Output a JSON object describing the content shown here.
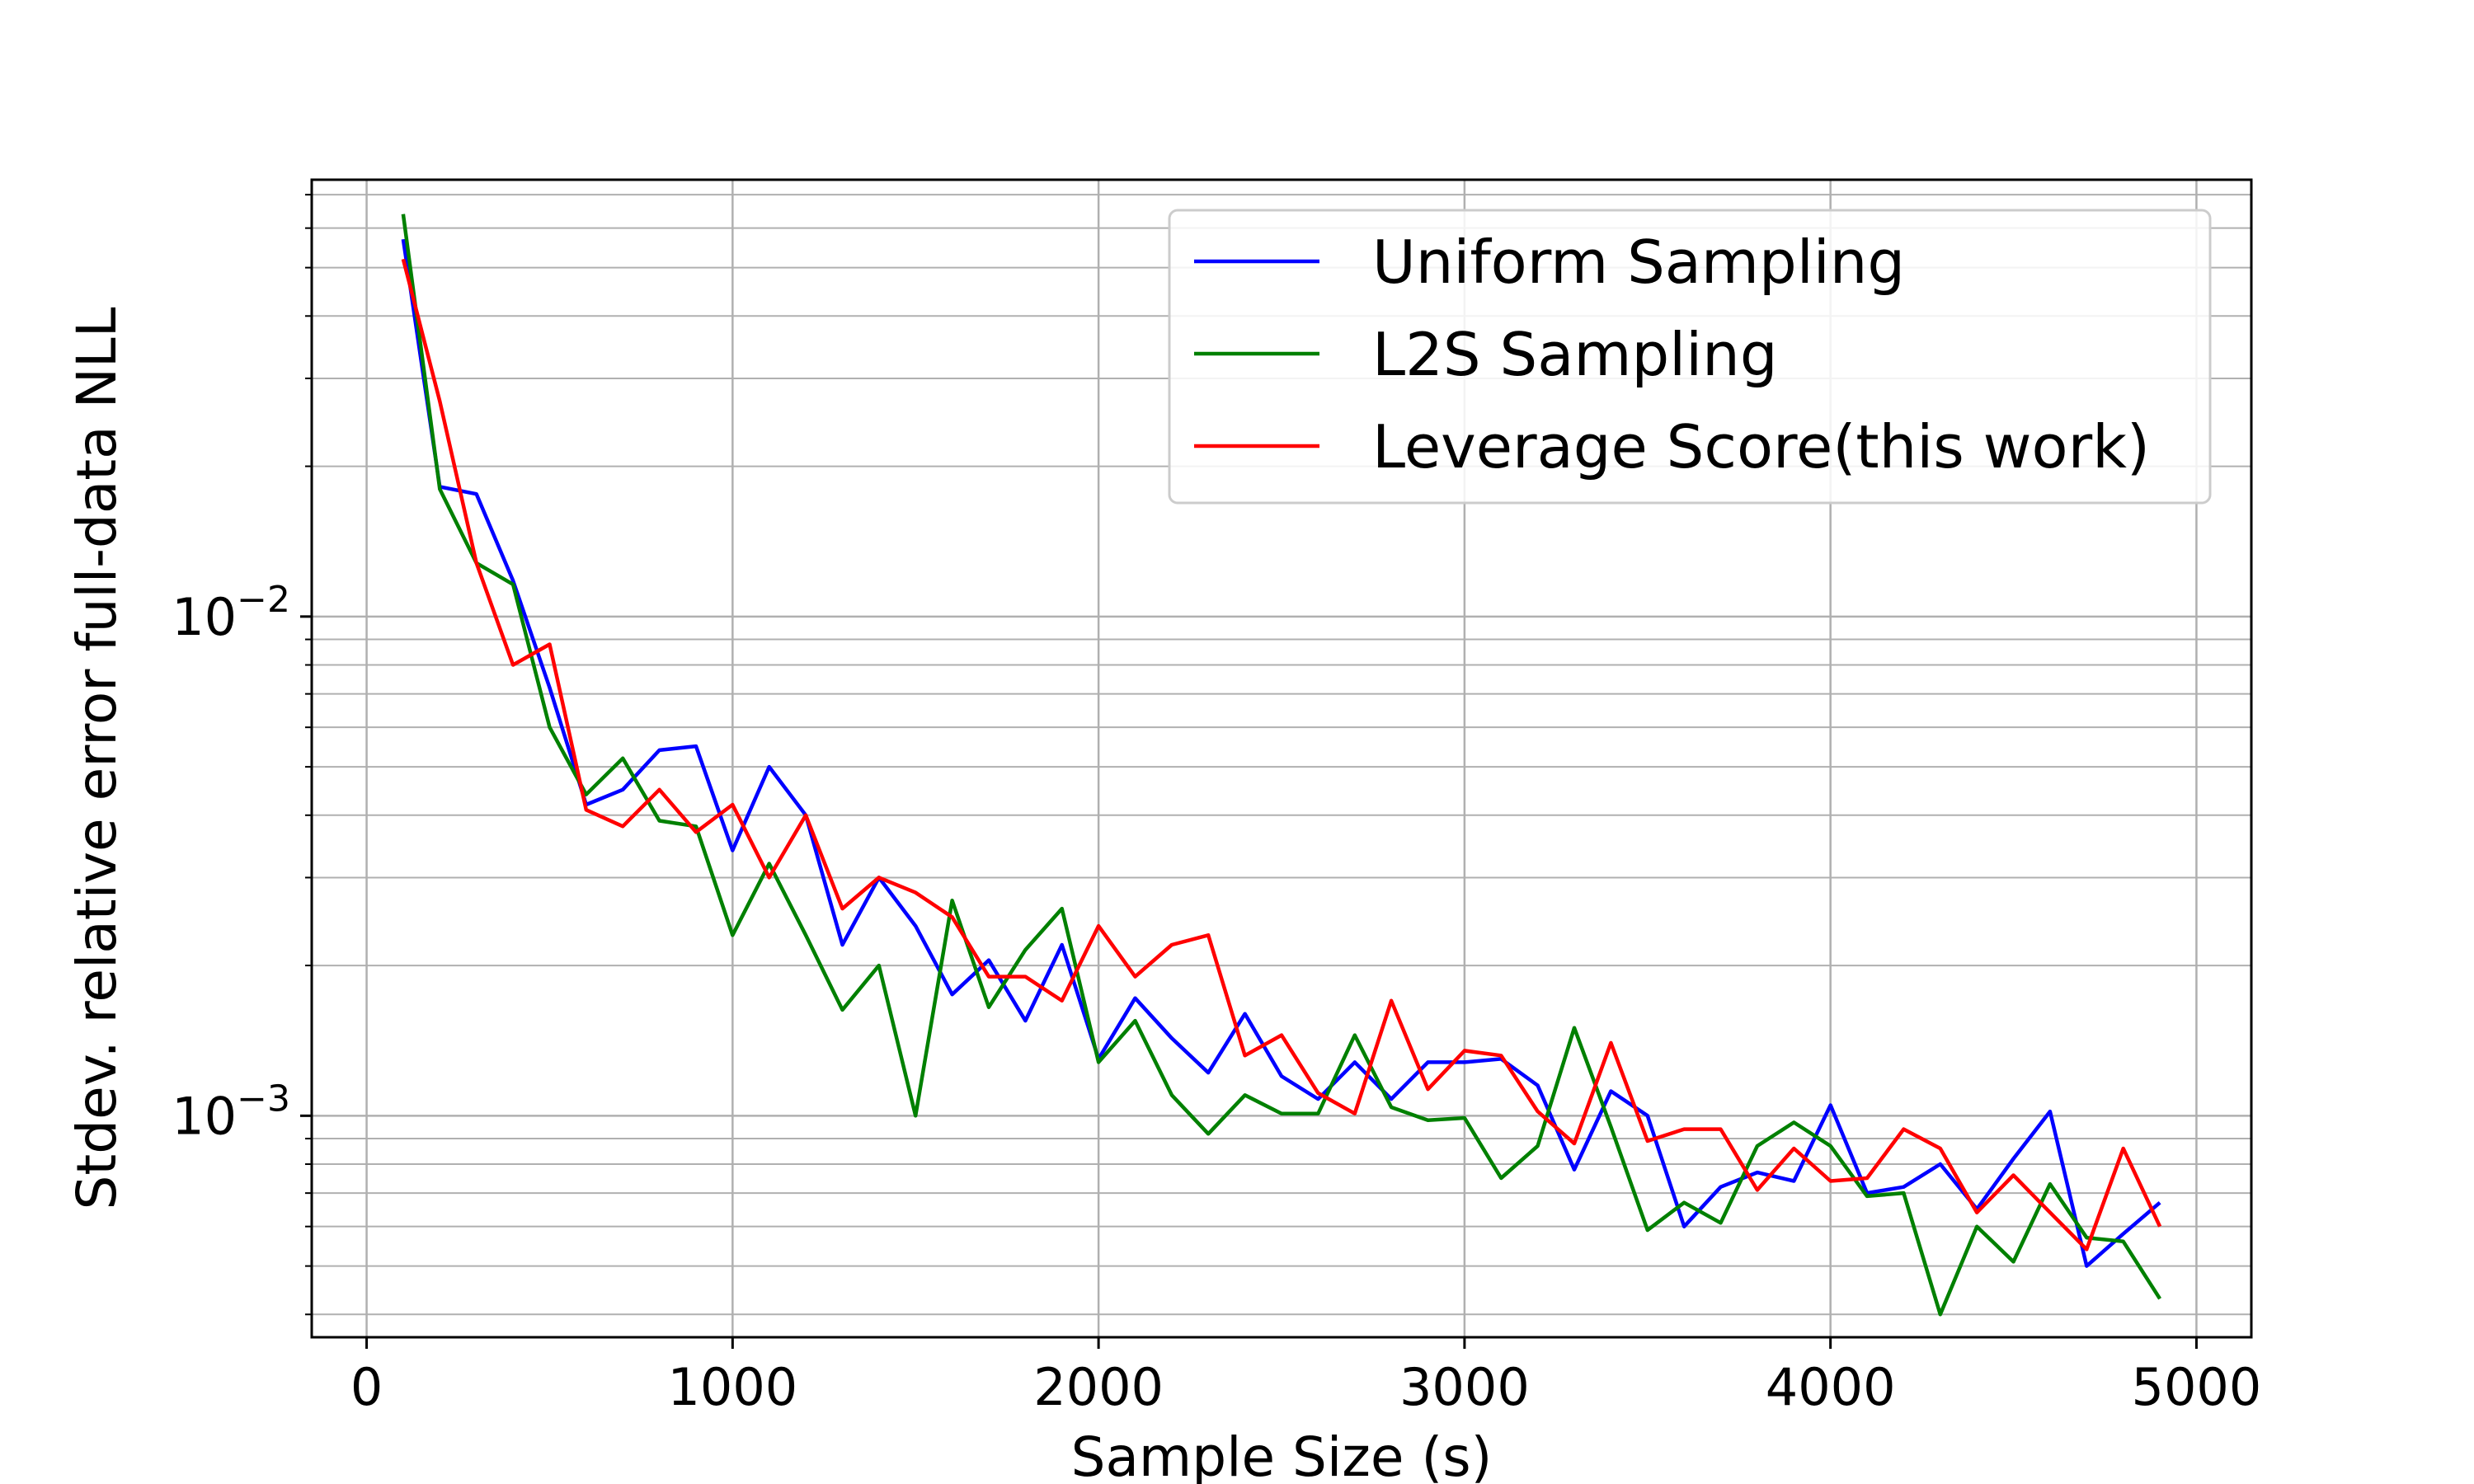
{
  "chart_data": {
    "type": "line",
    "title": "",
    "xlabel": "Sample Size (s)",
    "ylabel": "Stdev. relative error full-data NLL",
    "xlim": [
      -150,
      5150
    ],
    "ylim": [
      0.00036,
      0.075
    ],
    "yscale": "log",
    "grid": true,
    "legend_position": "top-right",
    "x_ticks": [
      0,
      1000,
      2000,
      3000,
      4000,
      5000
    ],
    "x_tick_labels": [
      "0",
      "1000",
      "2000",
      "3000",
      "4000",
      "5000"
    ],
    "y_major_ticks": [
      0.001,
      0.01
    ],
    "y_tick_labels": [
      {
        "base": "10",
        "exp": "−3"
      },
      {
        "base": "10",
        "exp": "−2"
      }
    ],
    "x": [
      100,
      200,
      300,
      400,
      500,
      600,
      700,
      800,
      900,
      1000,
      1100,
      1200,
      1300,
      1400,
      1500,
      1600,
      1700,
      1800,
      1900,
      2000,
      2100,
      2200,
      2300,
      2400,
      2500,
      2600,
      2700,
      2800,
      2900,
      3000,
      3100,
      3200,
      3300,
      3400,
      3500,
      3600,
      3700,
      3800,
      3900,
      4000,
      4100,
      4200,
      4300,
      4400,
      4500,
      4600,
      4700,
      4800,
      4900
    ],
    "series": [
      {
        "name": "Uniform Sampling",
        "color": "#0000ff",
        "values": [
          0.057,
          0.0182,
          0.0176,
          0.0118,
          0.0072,
          0.0042,
          0.0045,
          0.0054,
          0.0055,
          0.0034,
          0.005,
          0.004,
          0.0022,
          0.003,
          0.0024,
          0.00175,
          0.00205,
          0.00155,
          0.0022,
          0.0013,
          0.00172,
          0.00143,
          0.00122,
          0.0016,
          0.0012,
          0.00108,
          0.00128,
          0.00108,
          0.00128,
          0.00128,
          0.0013,
          0.00115,
          0.00078,
          0.00112,
          0.001,
          0.0006,
          0.00072,
          0.00077,
          0.00074,
          0.00105,
          0.0007,
          0.00072,
          0.0008,
          0.00065,
          0.00082,
          0.00102,
          0.0005,
          0.00058,
          0.00067
        ]
      },
      {
        "name": "L2S Sampling",
        "color": "#008000",
        "values": [
          0.064,
          0.018,
          0.0128,
          0.0116,
          0.006,
          0.0044,
          0.0052,
          0.0039,
          0.0038,
          0.0023,
          0.0032,
          0.0023,
          0.00163,
          0.002,
          0.001,
          0.0027,
          0.00165,
          0.00215,
          0.0026,
          0.00128,
          0.00155,
          0.0011,
          0.00092,
          0.0011,
          0.00101,
          0.00101,
          0.00145,
          0.00104,
          0.00098,
          0.00099,
          0.00075,
          0.00087,
          0.0015,
          0.00095,
          0.00059,
          0.00067,
          0.00061,
          0.00087,
          0.00097,
          0.00087,
          0.00069,
          0.0007,
          0.0004,
          0.0006,
          0.00051,
          0.00073,
          0.00057,
          0.00056,
          0.00043
        ]
      },
      {
        "name": "Leverage Score(this work)",
        "color": "#ff0000",
        "values": [
          0.052,
          0.027,
          0.0128,
          0.008,
          0.0088,
          0.0041,
          0.0038,
          0.0045,
          0.0037,
          0.0042,
          0.003,
          0.004,
          0.0026,
          0.003,
          0.0028,
          0.0025,
          0.0019,
          0.0019,
          0.0017,
          0.0024,
          0.0019,
          0.0022,
          0.0023,
          0.00132,
          0.00145,
          0.00111,
          0.00101,
          0.0017,
          0.00113,
          0.00135,
          0.00132,
          0.00102,
          0.00088,
          0.0014,
          0.00089,
          0.00094,
          0.00094,
          0.00071,
          0.00086,
          0.00074,
          0.00075,
          0.00094,
          0.00086,
          0.00064,
          0.00076,
          0.00064,
          0.00054,
          0.00086,
          0.0006
        ]
      }
    ]
  }
}
